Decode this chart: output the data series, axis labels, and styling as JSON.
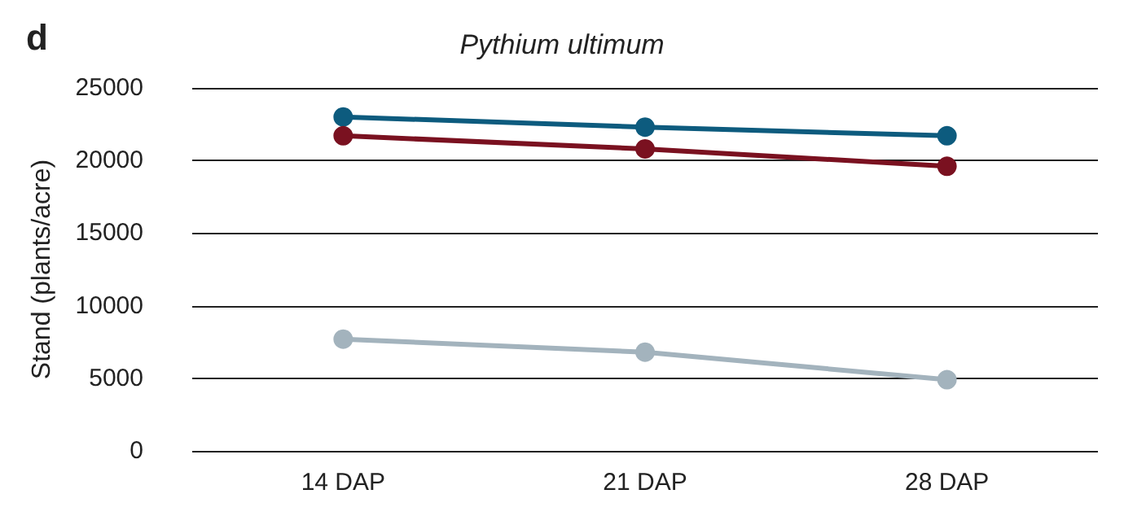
{
  "chart_data": {
    "type": "line",
    "title": "Pythium ultimum",
    "ylabel": "Stand (plants/acre)",
    "annotations": [
      "d"
    ],
    "categories": [
      "14 DAP",
      "21 DAP",
      "28 DAP"
    ],
    "series": [
      {
        "color": "#0d5b7e",
        "values": [
          23000,
          22300,
          21700
        ]
      },
      {
        "color": "#7a1120",
        "values": [
          21700,
          20800,
          19600
        ]
      },
      {
        "color": "#a3b3bd",
        "values": [
          7700,
          6800,
          4900
        ]
      }
    ],
    "ylim": [
      0,
      25000
    ],
    "yticks": [
      0,
      5000,
      10000,
      15000,
      20000,
      25000
    ],
    "grid": "y",
    "marker": "circle",
    "line_style": "solid"
  }
}
